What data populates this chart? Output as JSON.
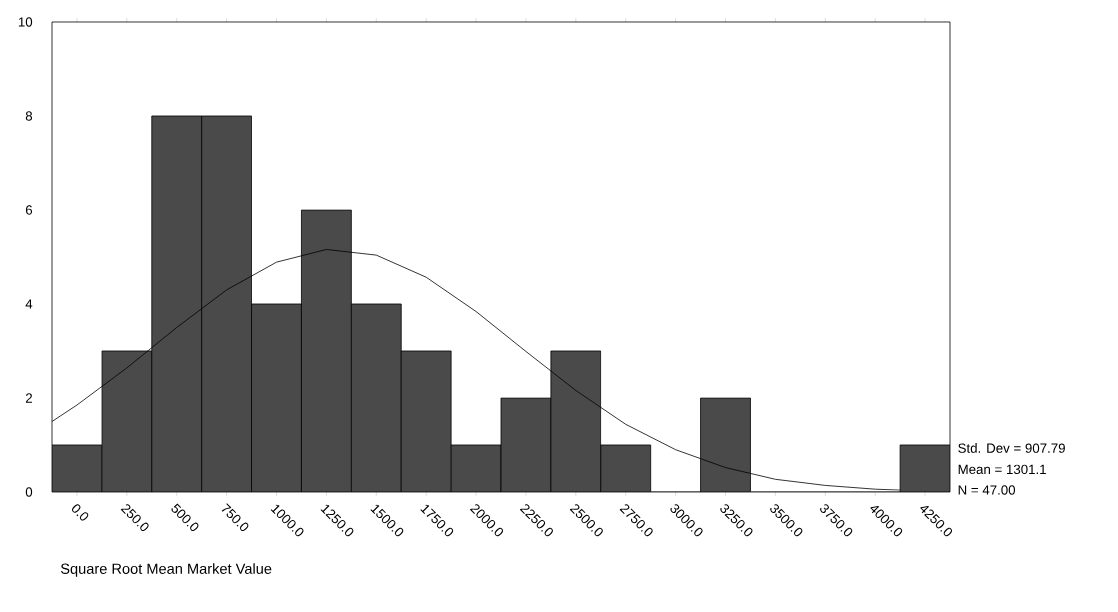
{
  "chart_data": {
    "type": "histogram",
    "xlabel": "Square Root Mean Market Value",
    "bins": [
      -125,
      125,
      375,
      625,
      875,
      1125,
      1375,
      1625,
      1875,
      2125,
      2375,
      2625,
      2875,
      3125,
      3375,
      3625,
      3875,
      4125,
      4375
    ],
    "series": [
      {
        "color": "#4a4a4a",
        "values": [
          1,
          3,
          8,
          8,
          4,
          6,
          4,
          3,
          1,
          2,
          3,
          1,
          0,
          2,
          0,
          0,
          0,
          1
        ]
      },
      {
        "type": "line",
        "color": "#000000",
        "x": [
          -125,
          0,
          250,
          500,
          750,
          1000,
          1250,
          1500,
          1750,
          2000,
          2250,
          2500,
          2750,
          3000,
          3250,
          3500,
          3750,
          4000,
          4125
        ],
        "values": [
          1.5,
          1.85,
          2.64,
          3.5,
          4.3,
          4.89,
          5.16,
          5.04,
          4.57,
          3.84,
          2.99,
          2.16,
          1.44,
          0.9,
          0.52,
          0.27,
          0.14,
          0.06,
          0.04
        ]
      }
    ],
    "xlim": [
      -125,
      4375
    ],
    "ylim": [
      0,
      10
    ],
    "yticks": [
      0,
      2,
      4,
      6,
      8,
      10
    ],
    "xticks": [
      {
        "value": 0,
        "label": "0.0"
      },
      {
        "value": 250,
        "label": "250.0"
      },
      {
        "value": 500,
        "label": "500.0"
      },
      {
        "value": 750,
        "label": "750.0"
      },
      {
        "value": 1000,
        "label": "1000.0"
      },
      {
        "value": 1250,
        "label": "1250.0"
      },
      {
        "value": 1500,
        "label": "1500.0"
      },
      {
        "value": 1750,
        "label": "1750.0"
      },
      {
        "value": 2000,
        "label": "2000.0"
      },
      {
        "value": 2250,
        "label": "2250.0"
      },
      {
        "value": 2500,
        "label": "2500.0"
      },
      {
        "value": 2750,
        "label": "2750.0"
      },
      {
        "value": 3000,
        "label": "3000.0"
      },
      {
        "value": 3250,
        "label": "3250.0"
      },
      {
        "value": 3500,
        "label": "3500.0"
      },
      {
        "value": 3750,
        "label": "3750.0"
      },
      {
        "value": 4000,
        "label": "4000.0"
      },
      {
        "value": 4250,
        "label": "4250.0"
      }
    ],
    "annotations": [
      "Std. Dev = 907.79",
      "Mean = 1301.1",
      "N = 47.00"
    ]
  }
}
